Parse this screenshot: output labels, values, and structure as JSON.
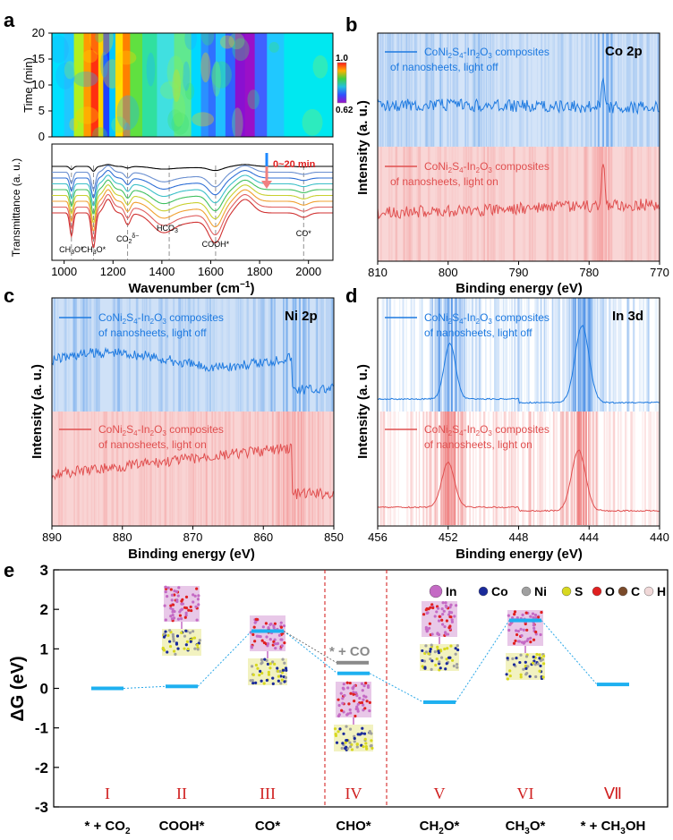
{
  "panels": {
    "a": {
      "letter": "a",
      "heatmap": {
        "ylabel": "Time (min)",
        "yticks": [
          "0",
          "5",
          "10",
          "15",
          "20"
        ],
        "colorbar_max": "1.0",
        "colorbar_min": "0.62"
      },
      "spectra": {
        "ylabel": "Transmittance (a. u.)",
        "xlabel": "Wavenumber (cm",
        "xlabel_unit_sup": "−1",
        "xticks": [
          "1000",
          "1200",
          "1400",
          "1600",
          "1800",
          "2000"
        ],
        "time_arrow_label": "0~20 min",
        "annotations": [
          {
            "label": "CH",
            "sub": "3",
            "tail": "O*",
            "wn": 1030
          },
          {
            "label": "CH",
            "sub": "3",
            "tail": "O*",
            "wn": 1120
          },
          {
            "label": "CO",
            "sub": "2",
            "sup": "δ−",
            "wn": 1260
          },
          {
            "label": "HCO",
            "sub": "3",
            "sup": "−",
            "wn": 1430
          },
          {
            "label": "COOH*",
            "wn": 1620
          },
          {
            "label": "CO*",
            "wn": 1980
          }
        ],
        "series_colors": [
          "#000000",
          "#6a8fd0",
          "#2f6fd6",
          "#3cc0c8",
          "#40c060",
          "#c8d030",
          "#f0a030",
          "#e06060",
          "#d03030"
        ]
      }
    },
    "b": {
      "letter": "b",
      "element": "Co 2p",
      "ylabel": "Intensity (a. u.)",
      "xlabel": "Binding energy (eV)",
      "xticks": [
        "810",
        "800",
        "790",
        "780",
        "770"
      ],
      "legend_off_l1": "composites",
      "legend_off_l2": "of nanosheets, light off",
      "legend_on_l1": "composites",
      "legend_on_l2": " of  nanosheets, light on"
    },
    "c": {
      "letter": "c",
      "element": "Ni 2p",
      "ylabel": "Intensity (a. u.)",
      "xlabel": "Binding energy (eV)",
      "xticks": [
        "890",
        "880",
        "870",
        "860",
        "850"
      ],
      "legend_off_l1": "composites",
      "legend_off_l2": "of nanosheets, light off",
      "legend_on_l1": "composites",
      "legend_on_l2": " of  nanosheets, light on"
    },
    "d": {
      "letter": "d",
      "element": "In 3d",
      "ylabel": "Intensity (a. u.)",
      "xlabel": "Binding energy (eV)",
      "xticks": [
        "456",
        "452",
        "448",
        "444",
        "440"
      ],
      "legend_off_l1": "composites",
      "legend_off_l2": "of nanosheets, light off",
      "legend_on_l1": "composites",
      "legend_on_l2": " of  nanosheets, light on"
    },
    "e": {
      "letter": "e",
      "ylabel": "ΔG (eV)",
      "yticks": [
        "-3",
        "-2",
        "-1",
        "0",
        "1",
        "2",
        "3"
      ],
      "co_label": "* + CO",
      "legend": {
        "items": [
          {
            "symbol": "In",
            "color": "#c46ac4"
          },
          {
            "symbol": "Co",
            "color": "#1a2a9a"
          },
          {
            "symbol": "Ni",
            "color": "#a0a0a0"
          },
          {
            "symbol": "S",
            "color": "#d8d820"
          },
          {
            "symbol": "O",
            "color": "#e02020"
          },
          {
            "symbol": "C",
            "color": "#7a4a2a"
          },
          {
            "symbol": "H",
            "color": "#f0d8d8"
          }
        ]
      },
      "steps": [
        {
          "roman": "I",
          "label": "* + CO",
          "sub": "2"
        },
        {
          "roman": "II",
          "label": "COOH*"
        },
        {
          "roman": "III",
          "label": "CO*"
        },
        {
          "roman": "IV",
          "label": "CHO*"
        },
        {
          "roman": "V",
          "label": "CH",
          "sub": "2",
          "tail": "O*"
        },
        {
          "roman": "VI",
          "label": "CH",
          "sub": "3",
          "tail": "O*"
        },
        {
          "roman": "Ⅶ",
          "label": "* + CH",
          "sub": "3",
          "tail": "OH"
        }
      ]
    },
    "compound": {
      "a": "CoNi",
      "s1": "2",
      "b": "S",
      "s2": "4",
      "c": "-In",
      "s3": "2",
      "d": "O",
      "s4": "3"
    }
  },
  "chart_data": [
    {
      "type": "heatmap",
      "panel": "a (top)",
      "title": "",
      "xlabel": "Wavenumber (cm-1)",
      "ylabel": "Time (min)",
      "xlim": [
        950,
        2100
      ],
      "ylim": [
        0,
        20
      ],
      "colorbar_range": [
        0.62,
        1.0
      ]
    },
    {
      "type": "line",
      "panel": "a (bottom)",
      "title": "",
      "xlabel": "Wavenumber (cm-1)",
      "ylabel": "Transmittance (a. u.)",
      "xlim": [
        950,
        2100
      ],
      "series_count": 9,
      "x": [
        1030,
        1120,
        1260,
        1430,
        1620,
        1980
      ],
      "band_labels": [
        "CH3O*",
        "CH3O*",
        "CO2δ-",
        "HCO3-",
        "COOH*",
        "CO*"
      ]
    },
    {
      "type": "line",
      "panel": "b",
      "title": "Co 2p",
      "xlabel": "Binding energy (eV)",
      "ylabel": "Intensity (a. u.)",
      "xlim": [
        810,
        770
      ],
      "peak": 778,
      "series": [
        {
          "name": "CoNi2S4-In2O3 composites of nanosheets, light off"
        },
        {
          "name": "CoNi2S4-In2O3 composites of nanosheets, light on"
        }
      ]
    },
    {
      "type": "line",
      "panel": "c",
      "title": "Ni 2p",
      "xlabel": "Binding energy (eV)",
      "ylabel": "Intensity (a. u.)",
      "xlim": [
        890,
        850
      ],
      "peak": 856,
      "series": [
        {
          "name": "CoNi2S4-In2O3 composites of nanosheets, light off"
        },
        {
          "name": "CoNi2S4-In2O3 composites of nanosheets, light on"
        }
      ]
    },
    {
      "type": "line",
      "panel": "d",
      "title": "In 3d",
      "xlabel": "Binding energy (eV)",
      "ylabel": "Intensity (a. u.)",
      "xlim": [
        456,
        440
      ],
      "series": [
        {
          "name": "CoNi2S4-In2O3 composites of nanosheets, light off",
          "peaks": [
            451.9,
            444.4
          ]
        },
        {
          "name": "CoNi2S4-In2O3 composites of nanosheets, light on",
          "peaks": [
            452.0,
            444.6
          ]
        }
      ]
    },
    {
      "type": "line",
      "panel": "e",
      "title": "",
      "xlabel": "",
      "ylabel": "ΔG (eV)",
      "ylim": [
        -3,
        3
      ],
      "categories": [
        "* + CO2",
        "COOH*",
        "CO*",
        "CHO*",
        "CH2O*",
        "CH3O*",
        "* + CH3OH"
      ],
      "values": [
        0.0,
        0.05,
        1.45,
        0.38,
        -0.35,
        1.72,
        0.1
      ],
      "extra_levels": [
        {
          "label": "* + CO",
          "value": 0.65
        }
      ]
    }
  ]
}
